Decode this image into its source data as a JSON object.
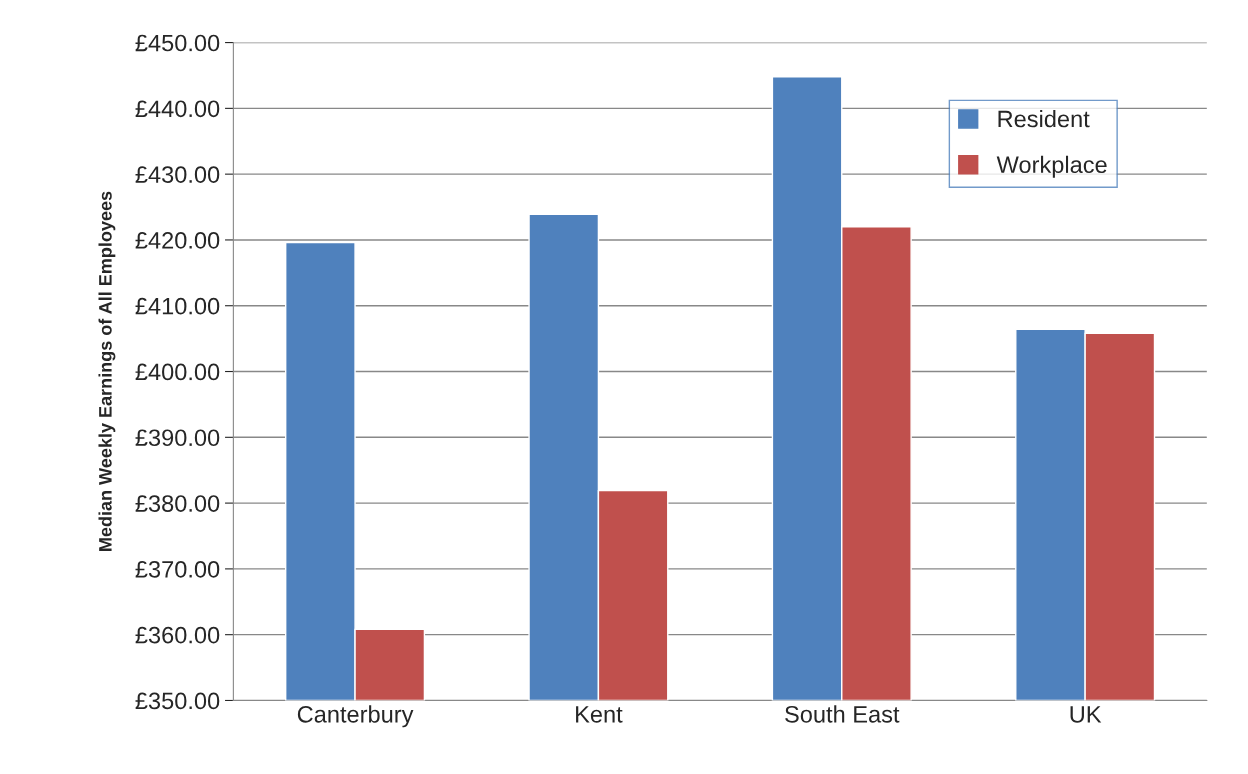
{
  "chart_data": {
    "type": "bar",
    "ylabel": "Median Weekly Earnings of All Employees",
    "categories": [
      "Canterbury",
      "Kent",
      "South East",
      "UK"
    ],
    "series": [
      {
        "name": "Resident",
        "color": "#4f81bd",
        "values": [
          419.6,
          423.9,
          444.8,
          406.4
        ]
      },
      {
        "name": "Workplace",
        "color": "#c0504d",
        "values": [
          360.8,
          381.9,
          422.0,
          405.8
        ]
      }
    ],
    "ylim": [
      350,
      450
    ],
    "yticks": [
      {
        "value": 350,
        "label": "£350.00"
      },
      {
        "value": 360,
        "label": "£360.00"
      },
      {
        "value": 370,
        "label": "£370.00"
      },
      {
        "value": 380,
        "label": "£380.00"
      },
      {
        "value": 390,
        "label": "£390.00"
      },
      {
        "value": 400,
        "label": "£400.00"
      },
      {
        "value": 410,
        "label": "£410.00"
      },
      {
        "value": 420,
        "label": "£420.00"
      },
      {
        "value": 430,
        "label": "£430.00"
      },
      {
        "value": 440,
        "label": "£440.00"
      },
      {
        "value": 450,
        "label": "£450.00"
      }
    ],
    "grid": "y",
    "legend": "top right"
  }
}
